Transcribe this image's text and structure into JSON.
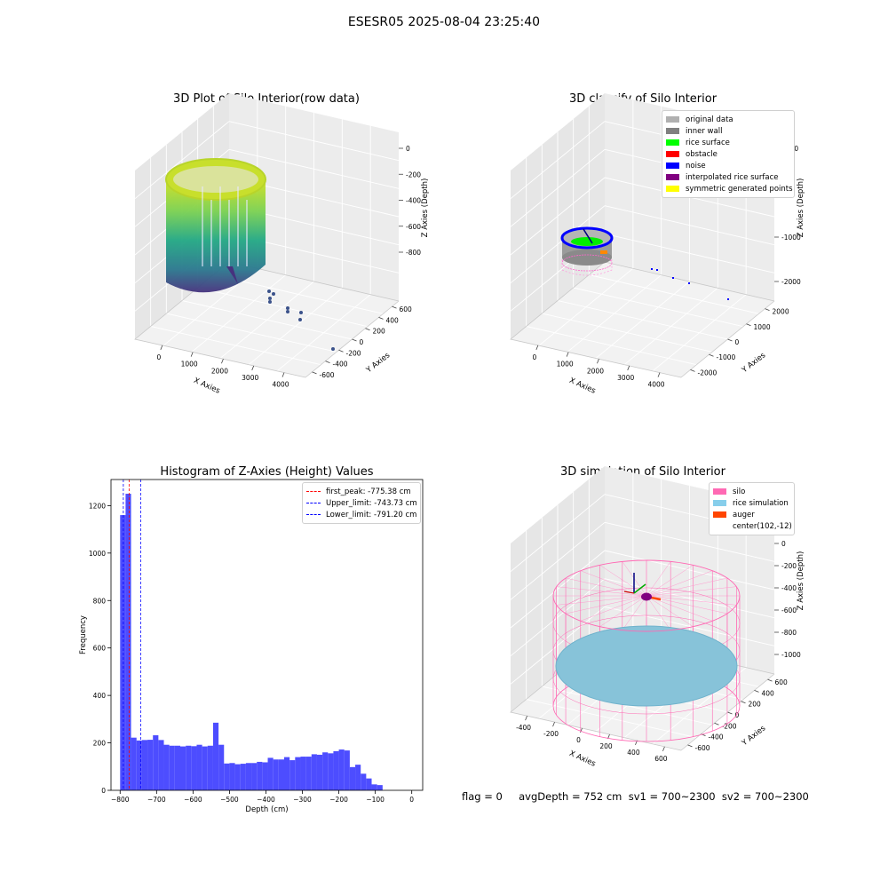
{
  "suptitle": "ESESR05 2025-08-04 23:25:40",
  "footer": "flag = 0     avgDepth = 752 cm  sv1 = 700~2300  sv2 = 700~2300",
  "chart_data": [
    {
      "type": "scatter",
      "title": "3D Plot of Silo Interior(row data)",
      "projection": "3d",
      "xlabel": "X Axies",
      "ylabel": "Y Axies",
      "zlabel": "Z Axies (Depth)",
      "x_ticks": [
        "0",
        "1000",
        "2000",
        "3000",
        "4000"
      ],
      "y_ticks": [
        "600",
        "400",
        "200",
        "0",
        "-200",
        "-400",
        "-600"
      ],
      "z_ticks": [
        "0",
        "-200",
        "-400",
        "-600",
        "-800"
      ],
      "colormap": "viridis",
      "grid": true
    },
    {
      "type": "scatter",
      "title": "3D classify of Silo Interior",
      "projection": "3d",
      "xlabel": "X Axies",
      "ylabel": "Y Axies",
      "zlabel": "Z Axies (Depth)",
      "x_ticks": [
        "0",
        "1000",
        "2000",
        "3000",
        "4000"
      ],
      "y_ticks": [
        "2000",
        "1000",
        "0",
        "-1000",
        "-2000"
      ],
      "z_ticks": [
        "1000",
        "0",
        "-1000",
        "-2000"
      ],
      "legend": [
        {
          "label": "original data",
          "color": "#b0b0b0"
        },
        {
          "label": "inner wall",
          "color": "#808080"
        },
        {
          "label": "rice surface",
          "color": "#00ff00"
        },
        {
          "label": "obstacle",
          "color": "#ff0000"
        },
        {
          "label": "noise",
          "color": "#0000ff"
        },
        {
          "label": "interpolated rice surface",
          "color": "#800080"
        },
        {
          "label": "symmetric generated points",
          "color": "#ffff00"
        }
      ],
      "legend_position": "top-right",
      "grid": true
    },
    {
      "type": "bar",
      "title": "Histogram of Z-Axies (Height) Values",
      "xlabel": "Depth (cm)",
      "ylabel": "Frequency",
      "bar_color": "#4d4dff",
      "bin_start": -800,
      "bin_width": 15,
      "values": [
        1160,
        1250,
        222,
        210,
        212,
        213,
        232,
        212,
        192,
        188,
        188,
        185,
        188,
        186,
        192,
        185,
        188,
        285,
        192,
        113,
        115,
        110,
        112,
        115,
        115,
        120,
        118,
        137,
        130,
        130,
        140,
        127,
        140,
        142,
        142,
        152,
        150,
        160,
        156,
        165,
        172,
        168,
        98,
        108,
        70,
        50,
        25,
        22
      ],
      "xlim": [
        -825,
        30
      ],
      "ylim": [
        0,
        1310
      ],
      "x_ticks": [
        -800,
        -700,
        -600,
        -500,
        -400,
        -300,
        -200,
        -100,
        0
      ],
      "y_ticks": [
        0,
        200,
        400,
        600,
        800,
        1000,
        1200
      ],
      "lines": [
        {
          "label": "first_peak: -775.38 cm",
          "x": -775.38,
          "color": "#ff0000"
        },
        {
          "label": "Upper_limit: -743.73 cm",
          "x": -743.73,
          "color": "#0000ff"
        },
        {
          "label": "Lower_limit: -791.20 cm",
          "x": -791.2,
          "color": "#0000ff"
        }
      ],
      "legend_position": "top-right"
    },
    {
      "type": "scatter",
      "title": "3D simulation of Silo Interior",
      "projection": "3d",
      "xlabel": "X Axies",
      "ylabel": "Y Axies",
      "zlabel": "Z Axies (Depth)",
      "x_ticks": [
        "-400",
        "-200",
        "0",
        "200",
        "400",
        "600"
      ],
      "y_ticks": [
        "600",
        "400",
        "200",
        "0",
        "-200",
        "-400",
        "-600"
      ],
      "z_ticks": [
        "200",
        "0",
        "-200",
        "-400",
        "-600",
        "-800",
        "-1000"
      ],
      "legend": [
        {
          "label": "silo",
          "color": "#ff69b4"
        },
        {
          "label": "rice simulation",
          "color": "#87ceeb"
        },
        {
          "label": "auger",
          "color": "#ff4500"
        },
        {
          "label": "center(102,-12)",
          "color": ""
        }
      ],
      "legend_position": "top-right",
      "grid": true
    }
  ]
}
